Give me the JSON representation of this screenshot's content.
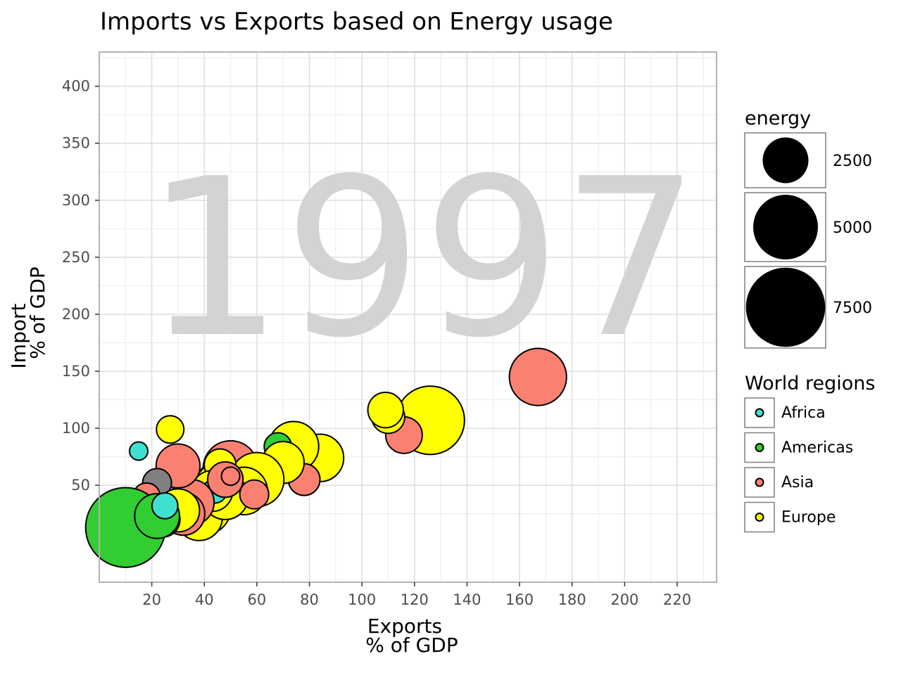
{
  "chart_data": {
    "type": "scatter",
    "title": "Imports vs Exports based on Energy usage",
    "year": "1997",
    "xlabel_line1": "Exports",
    "xlabel_line2": "% of GDP",
    "ylabel_line1": "Import",
    "ylabel_line2": "% of GDP",
    "xlim": [
      0,
      235
    ],
    "ylim": [
      -35,
      430
    ],
    "xticks": [
      20,
      40,
      60,
      80,
      100,
      120,
      140,
      160,
      180,
      200,
      220
    ],
    "yticks": [
      50,
      100,
      150,
      200,
      250,
      300,
      350,
      400
    ],
    "grid": true,
    "size_legend": {
      "title": "energy",
      "entries": [
        {
          "label": "2500",
          "value": 2500
        },
        {
          "label": "5000",
          "value": 5000
        },
        {
          "label": "7500",
          "value": 7500
        }
      ]
    },
    "color_legend": {
      "title": "World regions",
      "entries": [
        {
          "label": "Africa",
          "color": "#40e0d0"
        },
        {
          "label": "Americas",
          "color": "#32cd32"
        },
        {
          "label": "Asia",
          "color": "#fa8072"
        },
        {
          "label": "Europe",
          "color": "#ffff00"
        }
      ]
    },
    "unknown_color": "#808080",
    "points": [
      {
        "region": "Asia",
        "exports": 167,
        "imports": 145,
        "energy": 3900
      },
      {
        "region": "Europe",
        "exports": 126,
        "imports": 107,
        "energy": 5600
      },
      {
        "region": "Asia",
        "exports": 116,
        "imports": 94,
        "energy": 1600
      },
      {
        "region": "Europe",
        "exports": 110,
        "imports": 110,
        "energy": 1300
      },
      {
        "region": "Europe",
        "exports": 109,
        "imports": 116,
        "energy": 1500
      },
      {
        "region": "Europe",
        "exports": 84,
        "imports": 74,
        "energy": 2700
      },
      {
        "region": "Europe",
        "exports": 74,
        "imports": 84,
        "energy": 3000
      },
      {
        "region": "Asia",
        "exports": 78,
        "imports": 55,
        "energy": 1200
      },
      {
        "region": "Americas",
        "exports": 68,
        "imports": 84,
        "energy": 900
      },
      {
        "region": "Europe",
        "exports": 70,
        "imports": 70,
        "energy": 2100
      },
      {
        "region": "Asia",
        "exports": 55,
        "imports": 60,
        "energy": 2600
      },
      {
        "region": "Asia",
        "exports": 50,
        "imports": 65,
        "energy": 3600
      },
      {
        "region": "Asia",
        "exports": 47,
        "imports": 50,
        "energy": 3400
      },
      {
        "region": "Europe",
        "exports": 60,
        "imports": 55,
        "energy": 3500
      },
      {
        "region": "Europe",
        "exports": 55,
        "imports": 45,
        "energy": 2700
      },
      {
        "region": "Asia",
        "exports": 40,
        "imports": 40,
        "energy": 2800
      },
      {
        "region": "Europe",
        "exports": 40,
        "imports": 30,
        "energy": 3400
      },
      {
        "region": "Europe",
        "exports": 38,
        "imports": 22,
        "energy": 2600
      },
      {
        "region": "Europe",
        "exports": 45,
        "imports": 50,
        "energy": 2300
      },
      {
        "region": "Europe",
        "exports": 48,
        "imports": 40,
        "energy": 2500
      },
      {
        "region": "Europe",
        "exports": 46,
        "imports": 68,
        "energy": 1200
      },
      {
        "region": "Europe",
        "exports": 43,
        "imports": 45,
        "energy": 2000
      },
      {
        "region": "Africa",
        "exports": 44,
        "imports": 45,
        "energy": 700
      },
      {
        "region": "Asia",
        "exports": 48,
        "imports": 55,
        "energy": 1500
      },
      {
        "region": "Asia",
        "exports": 50,
        "imports": 58,
        "energy": 400
      },
      {
        "region": "Asia",
        "exports": 59,
        "imports": 42,
        "energy": 1000
      },
      {
        "region": "Asia",
        "exports": 35,
        "imports": 35,
        "energy": 2500
      },
      {
        "region": "Asia",
        "exports": 30,
        "imports": 67,
        "energy": 2300
      },
      {
        "region": "Europe",
        "exports": 27,
        "imports": 99,
        "energy": 900
      },
      {
        "region": "Africa",
        "exports": 15,
        "imports": 80,
        "energy": 400
      },
      {
        "region": "unknown",
        "exports": 22,
        "imports": 52,
        "energy": 1000
      },
      {
        "region": "Asia",
        "exports": 18,
        "imports": 40,
        "energy": 900
      },
      {
        "region": "Asia",
        "exports": 32,
        "imports": 25,
        "energy": 2200
      },
      {
        "region": "Europe",
        "exports": 30,
        "imports": 28,
        "energy": 2200
      },
      {
        "region": "Asia",
        "exports": 24,
        "imports": 20,
        "energy": 1500
      },
      {
        "region": "Americas",
        "exports": 10,
        "imports": 13,
        "energy": 7600
      },
      {
        "region": "Americas",
        "exports": 20,
        "imports": 20,
        "energy": 1000
      },
      {
        "region": "Americas",
        "exports": 22,
        "imports": 23,
        "energy": 2400
      },
      {
        "region": "Africa",
        "exports": 25,
        "imports": 32,
        "energy": 800
      }
    ]
  }
}
